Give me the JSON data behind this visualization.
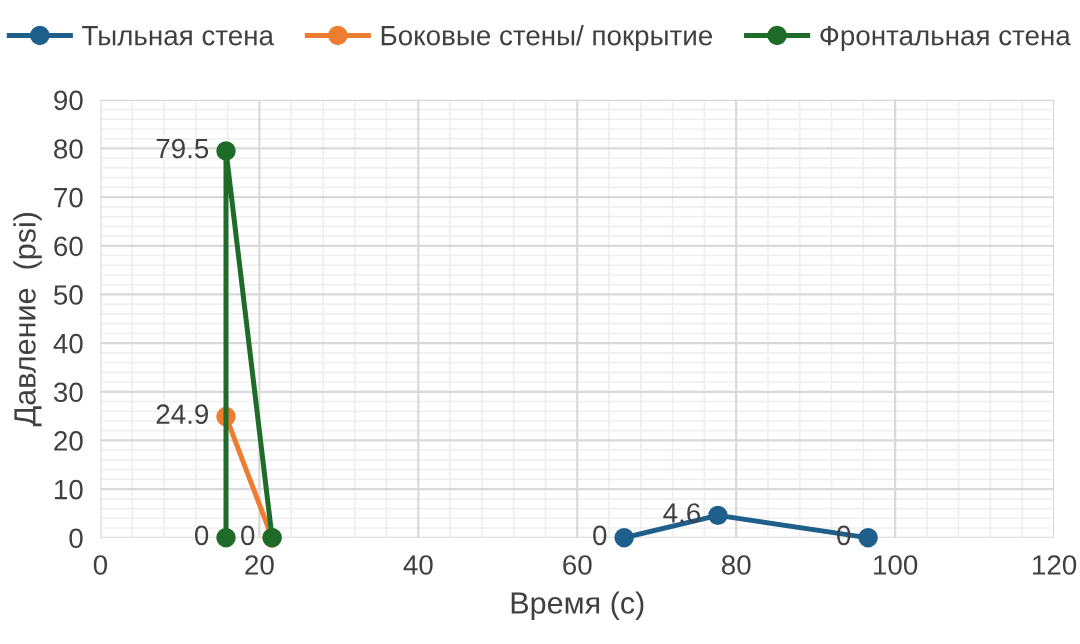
{
  "chart_data": {
    "type": "scatter",
    "xlabel": "Время (с)",
    "ylabel": "Давление  (psi)",
    "legend": "top",
    "grid": true,
    "marker": "circle",
    "line_style": "solid",
    "xlim": [
      0,
      120
    ],
    "xticks": [
      0,
      20,
      40,
      60,
      80,
      100,
      120
    ],
    "ylim": [
      0,
      90
    ],
    "yticks": [
      0,
      10,
      20,
      30,
      40,
      50,
      60,
      70,
      80,
      90
    ],
    "series": [
      {
        "name": "Тыльная стена",
        "color": "#1f5f8b",
        "x": [
          65.9,
          77.7,
          96.6
        ],
        "values": [
          0,
          4.6,
          0
        ],
        "value_labels": [
          "0",
          "4.6",
          "0"
        ]
      },
      {
        "name": "Боковые стены/ покрытие",
        "color": "#ed7d31",
        "x": [
          15.8,
          21.6
        ],
        "values": [
          24.9,
          0
        ],
        "value_labels": [
          "24.9",
          "0"
        ]
      },
      {
        "name": "Фронтальная стена",
        "color": "#1e6b2a",
        "x": [
          15.8,
          15.8,
          21.6
        ],
        "values": [
          0,
          79.5,
          0
        ],
        "value_labels": [
          "0",
          "79.5",
          null
        ]
      }
    ]
  }
}
